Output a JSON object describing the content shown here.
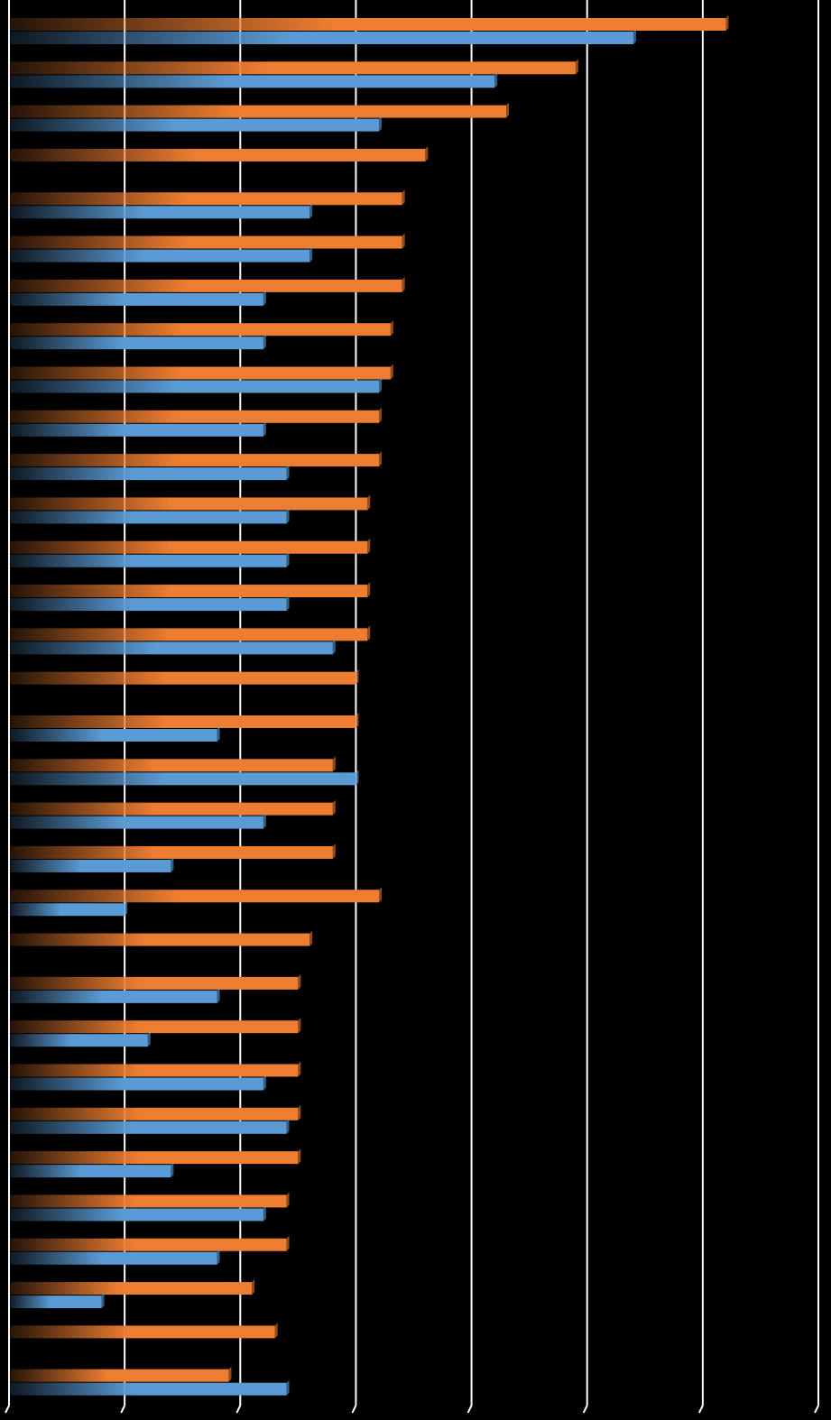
{
  "chart_data": {
    "type": "bar",
    "orientation": "horizontal",
    "categories": [
      null,
      null,
      null,
      null,
      null,
      null,
      null,
      null,
      null,
      null,
      null,
      null,
      null,
      null,
      null,
      null,
      null,
      null,
      null,
      null,
      null,
      null,
      null,
      null,
      null,
      null,
      null,
      null,
      null,
      null,
      null,
      null
    ],
    "series": [
      {
        "color": "#ed7d31",
        "values": [
          62,
          49,
          43,
          36,
          34,
          34,
          34,
          33,
          33,
          32,
          32,
          31,
          31,
          31,
          31,
          30,
          30,
          28,
          28,
          28,
          32,
          26,
          25,
          25,
          25,
          25,
          25,
          24,
          24,
          21,
          23,
          19
        ]
      },
      {
        "color": "#5b9bd5",
        "values": [
          54,
          42,
          32,
          null,
          26,
          26,
          22,
          22,
          32,
          22,
          24,
          24,
          24,
          24,
          28,
          null,
          18,
          30,
          22,
          14,
          10,
          null,
          18,
          12,
          22,
          24,
          14,
          22,
          18,
          8,
          null,
          24
        ]
      }
    ],
    "xlim": [
      0,
      70
    ],
    "xticks": [
      0,
      10,
      20,
      30,
      40,
      50,
      60,
      70
    ],
    "grid": true
  }
}
